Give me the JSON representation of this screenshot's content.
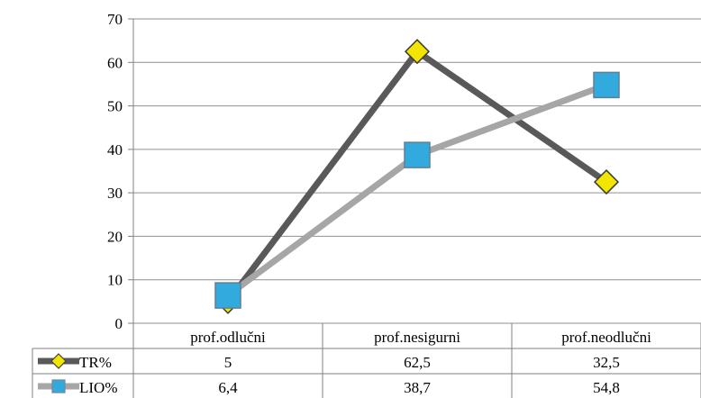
{
  "chart_data": {
    "type": "line",
    "categories": [
      "prof.odlučni",
      "prof.nesigurni",
      "prof.neodlučni"
    ],
    "series": [
      {
        "name": "TR%",
        "values": [
          5,
          62.5,
          32.5
        ],
        "display": [
          "5",
          "62,5",
          "32,5"
        ],
        "color": "#595959",
        "marker": "diamond",
        "marker_color": "#f2e600"
      },
      {
        "name": "LIO%",
        "values": [
          6.4,
          38.7,
          54.8
        ],
        "display": [
          "6,4",
          "38,7",
          "54,8"
        ],
        "color": "#a6a6a6",
        "marker": "square",
        "marker_color": "#33aadd"
      }
    ],
    "ylim": [
      0,
      70
    ],
    "yticks": [
      0,
      10,
      20,
      30,
      40,
      50,
      60,
      70
    ],
    "grid": true,
    "legend": "data-table",
    "title": "",
    "xlabel": "",
    "ylabel": ""
  }
}
